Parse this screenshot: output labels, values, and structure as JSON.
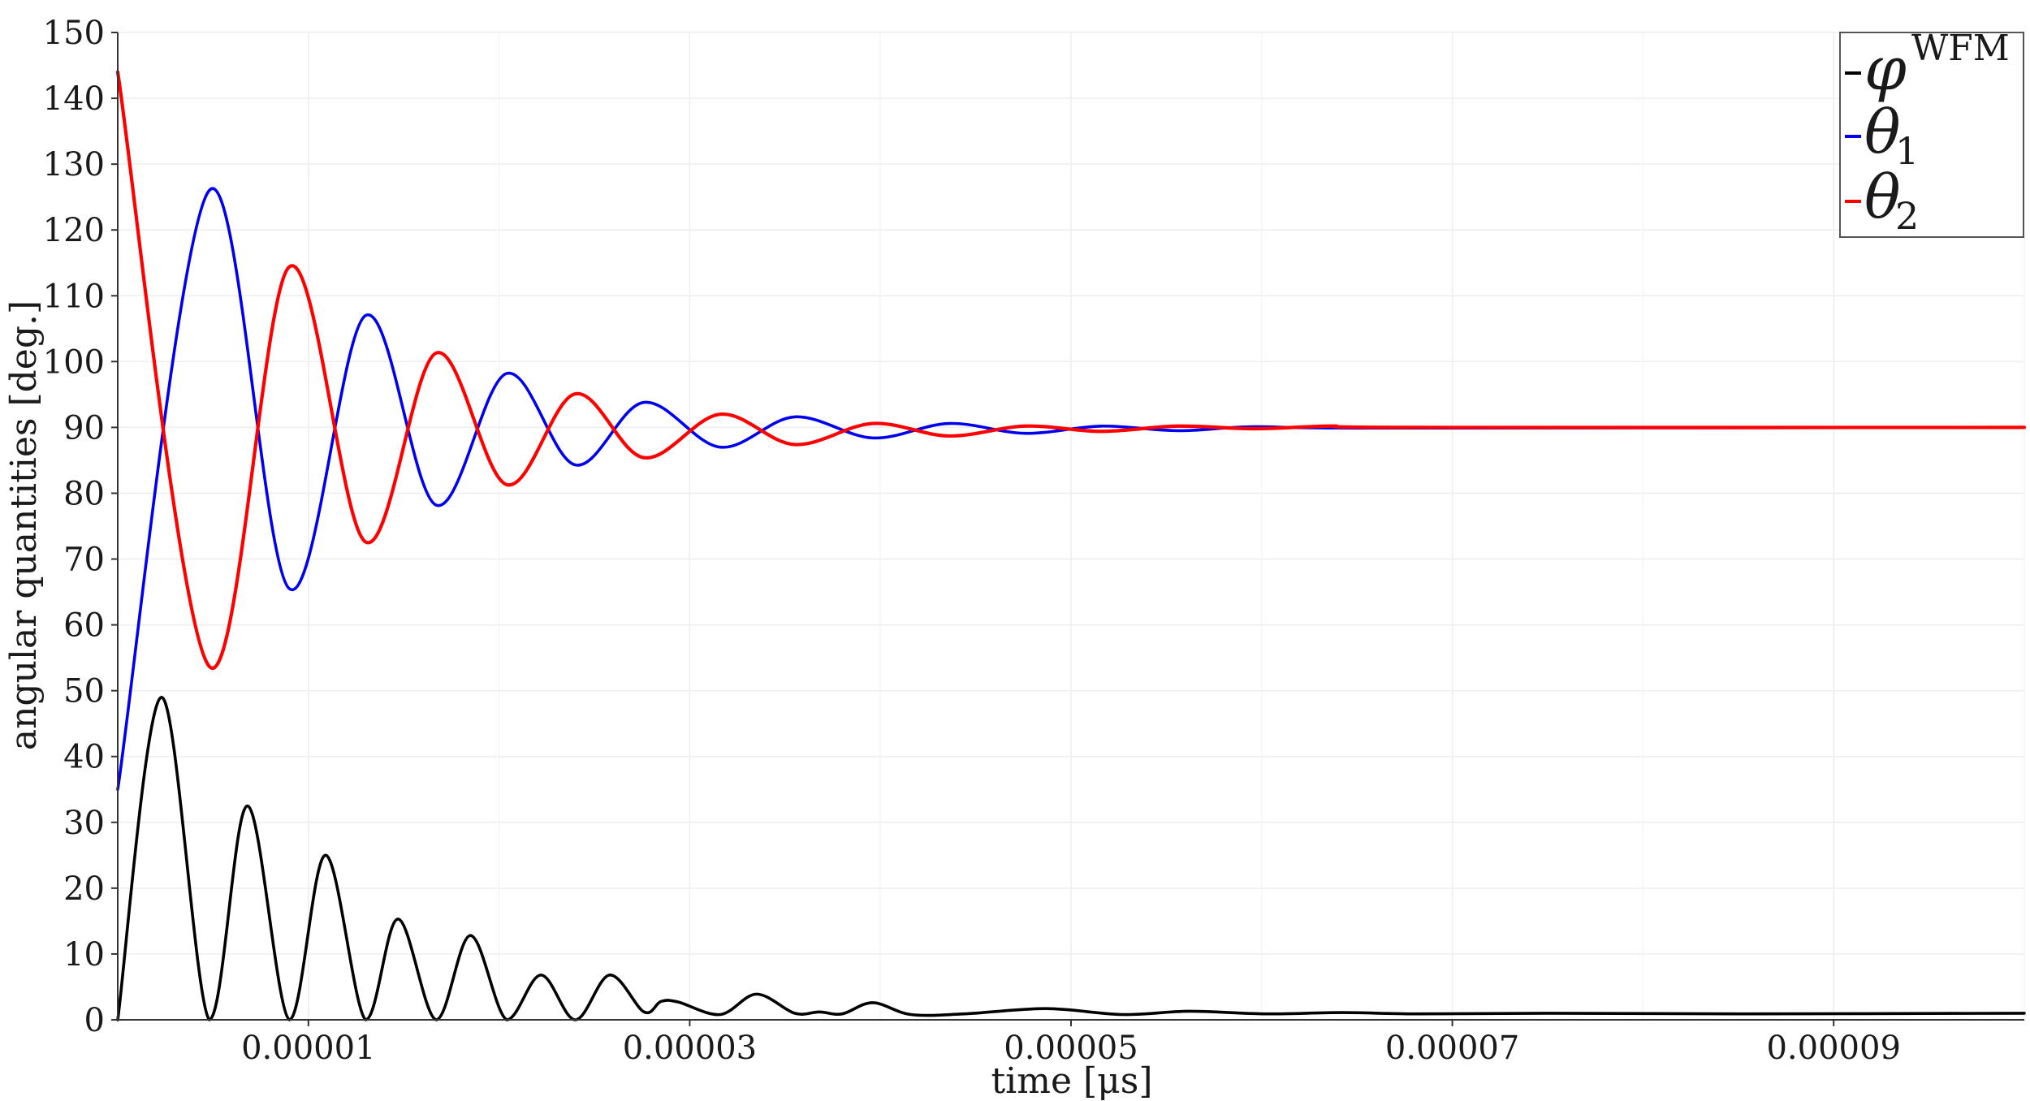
{
  "chart_data": {
    "type": "line",
    "title": "",
    "xlabel": "time [μs]",
    "ylabel": "angular quantities [deg.]",
    "xlim": [
      0,
      0.0001
    ],
    "ylim": [
      0,
      150
    ],
    "x_ticks": [
      1e-05,
      3e-05,
      5e-05,
      7e-05,
      9e-05
    ],
    "x_tick_labels": [
      "0.00001",
      "0.00003",
      "0.00005",
      "0.00007",
      "0.00009"
    ],
    "y_ticks": [
      0,
      10,
      20,
      30,
      40,
      50,
      60,
      70,
      80,
      90,
      100,
      110,
      120,
      130,
      140,
      150
    ],
    "y_tick_labels": [
      "0",
      "10",
      "20",
      "30",
      "40",
      "50",
      "60",
      "70",
      "80",
      "90",
      "100",
      "110",
      "120",
      "130",
      "140",
      "150"
    ],
    "grid": true,
    "legend_position": "top-right",
    "series": [
      {
        "name": "φ WFM",
        "legend_symbol": "φ",
        "legend_superscript": "WFM",
        "legend_subscript": "",
        "color": "#000000",
        "x": [
          0,
          2.3e-06,
          4.8e-06,
          6.8e-06,
          9e-06,
          1.09e-05,
          1.3e-05,
          1.47e-05,
          1.67e-05,
          1.85e-05,
          2.04e-05,
          2.22e-05,
          2.4e-05,
          2.58e-05,
          2.76e-05,
          2.85e-05,
          2.94e-05,
          3.16e-05,
          3.35e-05,
          3.55e-05,
          3.68e-05,
          3.8e-05,
          3.96e-05,
          4.16e-05,
          4.44e-05,
          4.87e-05,
          5.27e-05,
          5.62e-05,
          6.02e-05,
          6.42e-05,
          6.82e-05,
          7.5e-05,
          8.5e-05,
          0.0001
        ],
        "y": [
          0,
          49,
          0,
          32.5,
          0,
          25,
          0,
          15.3,
          0,
          12.8,
          0,
          6.8,
          0,
          6.8,
          1.2,
          2.8,
          2.7,
          0.8,
          3.9,
          1.0,
          1.2,
          0.9,
          2.6,
          0.8,
          0.9,
          1.7,
          0.8,
          1.3,
          0.9,
          1.1,
          0.9,
          1.0,
          0.9,
          1.0
        ]
      },
      {
        "name": "θ1",
        "legend_symbol": "θ",
        "legend_superscript": "",
        "legend_subscript": "1",
        "color": "#0000ee",
        "x": [
          0,
          4.8e-06,
          9e-06,
          1.3e-05,
          1.67e-05,
          2.04e-05,
          2.4e-05,
          2.76e-05,
          3.16e-05,
          3.55e-05,
          3.96e-05,
          4.36e-05,
          4.76e-05,
          5.16e-05,
          5.56e-05,
          5.96e-05,
          6.6e-05,
          0.0001
        ],
        "y": [
          35,
          126,
          65.5,
          107,
          78.2,
          98.2,
          84.3,
          93.8,
          87.0,
          91.6,
          88.4,
          90.6,
          89.1,
          90.2,
          89.5,
          90.1,
          89.9,
          90.0
        ]
      },
      {
        "name": "θ2",
        "legend_symbol": "θ",
        "legend_superscript": "",
        "legend_subscript": "2",
        "color": "#ff0000",
        "x": [
          0,
          4.8e-06,
          9e-06,
          1.3e-05,
          1.67e-05,
          2.04e-05,
          2.4e-05,
          2.76e-05,
          3.16e-05,
          3.55e-05,
          3.96e-05,
          4.36e-05,
          4.76e-05,
          5.16e-05,
          5.56e-05,
          5.96e-05,
          6.36e-05,
          6.76e-05,
          0.0001
        ],
        "y": [
          144,
          53.7,
          114.4,
          72.6,
          101.3,
          81.3,
          95.1,
          85.4,
          92.0,
          87.4,
          90.6,
          88.7,
          90.2,
          89.4,
          90.2,
          89.8,
          90.2,
          90.0,
          90.0
        ]
      }
    ]
  }
}
